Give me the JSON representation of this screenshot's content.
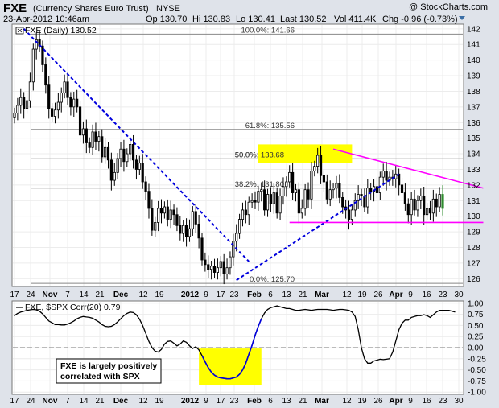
{
  "header": {
    "symbol": "FXE",
    "name": "(Currency Shares Euro Trust)",
    "exchange": "NYSE",
    "datetime": "23-Apr-2012 10:46am",
    "open": "Op 130.70",
    "high": "Hi 130.83",
    "low": "Lo 130.41",
    "last": "Last 130.52",
    "volume": "Vol 411.4K",
    "change": "Chg -0.96 (-0.73%)",
    "change_color": "#cc0000",
    "watermark": "@ StockCharts.com"
  },
  "colors": {
    "trendline": "#0000dd",
    "resistance": "#ff00ff",
    "highlight": "#ffff00",
    "candle_up": "#ffffff",
    "candle_down": "#000000",
    "current_bar": "#2e8b2e"
  },
  "chart_data": [
    {
      "type": "candlestick",
      "legend": "FXE (Daily) 130.52",
      "ylim": [
        125.5,
        142.3
      ],
      "yticks": [
        126,
        127,
        128,
        129,
        130,
        131,
        132,
        133,
        134,
        135,
        136,
        137,
        138,
        139,
        140,
        141,
        142
      ],
      "xlabels": [
        "17",
        "24",
        "Nov",
        "7",
        "14",
        "21",
        "Dec",
        "12",
        "19",
        "2012",
        "9",
        "17",
        "23",
        "Feb",
        "6",
        "13",
        "21",
        "Mar",
        "12",
        "19",
        "26",
        "Apr",
        "9",
        "16",
        "23",
        "30"
      ],
      "xlabels_bold": [
        "Nov",
        "Dec",
        "2012",
        "Feb",
        "Mar",
        "Apr"
      ],
      "fib_levels": [
        {
          "label": "100.0%: 141.66",
          "value": 141.66
        },
        {
          "label": "61.8%: 135.56",
          "value": 135.56
        },
        {
          "label": "50.0%: 133.68",
          "value": 133.68
        },
        {
          "label": "38.2%: 131.80",
          "value": 131.8
        },
        {
          "label": "0.0%: 125.70",
          "value": 125.7
        }
      ],
      "closes": [
        136.6,
        137.1,
        137.6,
        136.9,
        137.4,
        138.6,
        140.7,
        141.3,
        140.9,
        139.7,
        138.4,
        136.9,
        136.4,
        136.8,
        137.3,
        137.9,
        138.6,
        137.6,
        137.0,
        137.5,
        137.0,
        135.2,
        135.6,
        134.7,
        134.4,
        135.4,
        134.8,
        135.1,
        133.8,
        134.4,
        133.6,
        132.3,
        132.8,
        133.7,
        134.3,
        133.5,
        134.0,
        134.6,
        133.6,
        133.0,
        133.4,
        132.2,
        131.6,
        130.5,
        129.1,
        129.6,
        130.5,
        130.2,
        130.6,
        129.8,
        130.4,
        130.1,
        129.4,
        128.9,
        129.4,
        128.7,
        129.2,
        130.3,
        129.5,
        128.6,
        127.2,
        126.9,
        126.6,
        126.8,
        126.4,
        126.7,
        127.1,
        126.3,
        126.7,
        127.4,
        128.4,
        128.9,
        129.8,
        130.4,
        130.1,
        130.9,
        131.0,
        130.9,
        131.6,
        131.7,
        130.4,
        131.4,
        130.8,
        131.5,
        130.2,
        131.3,
        131.9,
        132.2,
        132.8,
        131.5,
        131.7,
        130.2,
        130.5,
        131.7,
        131.1,
        132.9,
        133.2,
        133.9,
        132.6,
        132.2,
        131.1,
        131.7,
        131.8,
        132.1,
        131.2,
        130.6,
        130.4,
        129.8,
        130.4,
        131.0,
        131.4,
        131.3,
        130.6,
        131.8,
        131.6,
        131.9,
        131.5,
        132.5,
        132.9,
        132.3,
        132.5,
        132.4,
        132.7,
        132.0,
        131.5,
        130.8,
        130.1,
        131.1,
        130.4,
        131.0,
        131.3,
        130.1,
        130.5,
        130.2,
        131.1,
        130.6,
        131.4,
        130.5
      ],
      "trendlines": [
        {
          "kind": "dashed-blue",
          "from": [
            3,
            142.0
          ],
          "to": [
            75,
            127.1
          ]
        },
        {
          "kind": "dashed-blue",
          "from": [
            71,
            125.9
          ],
          "to": [
            123,
            132.7
          ]
        },
        {
          "kind": "magenta",
          "from": [
            102,
            134.3
          ],
          "to": [
            150,
            131.8
          ]
        },
        {
          "kind": "magenta",
          "from": [
            88,
            129.6
          ],
          "to": [
            150,
            129.6
          ]
        }
      ],
      "highlight_zone": {
        "from": [
          78,
          133.4
        ],
        "to": [
          108,
          134.6
        ]
      }
    },
    {
      "type": "line",
      "legend": "FXE, $SPX Corr(20) 0.79",
      "ylim": [
        -1.05,
        1.05
      ],
      "yticks": [
        "1.00",
        "0.75",
        "0.50",
        "0.25",
        "0.00",
        "-0.25",
        "-0.50",
        "-0.75",
        "-1.00"
      ],
      "ytick_values": [
        1.0,
        0.75,
        0.5,
        0.25,
        0.0,
        -0.25,
        -0.5,
        -0.75,
        -1.0
      ],
      "zero_line": 0.0,
      "annotation": [
        "FXE is largely positively",
        "correlated with SPX"
      ],
      "highlight_zone": {
        "from": [
          59,
          -0.02
        ],
        "to": [
          79,
          -0.84
        ]
      },
      "series": [
        0.72,
        0.77,
        0.8,
        0.82,
        0.84,
        0.85,
        0.86,
        0.85,
        0.82,
        0.76,
        0.68,
        0.6,
        0.56,
        0.52,
        0.52,
        0.51,
        0.51,
        0.53,
        0.56,
        0.6,
        0.65,
        0.68,
        0.7,
        0.69,
        0.68,
        0.66,
        0.62,
        0.58,
        0.52,
        0.48,
        0.47,
        0.48,
        0.52,
        0.58,
        0.65,
        0.72,
        0.77,
        0.8,
        0.79,
        0.74,
        0.64,
        0.5,
        0.32,
        0.14,
        0.0,
        -0.08,
        -0.1,
        -0.04,
        0.08,
        0.14,
        0.15,
        0.1,
        0.04,
        0.08,
        0.15,
        0.12,
        0.04,
        -0.02,
        0.02,
        -0.05,
        -0.18,
        -0.32,
        -0.45,
        -0.55,
        -0.62,
        -0.66,
        -0.68,
        -0.69,
        -0.7,
        -0.7,
        -0.68,
        -0.66,
        -0.6,
        -0.5,
        -0.35,
        -0.15,
        0.05,
        0.28,
        0.48,
        0.65,
        0.78,
        0.86,
        0.9,
        0.92,
        0.94,
        0.92,
        0.9,
        0.88,
        0.88,
        0.86,
        0.84,
        0.84,
        0.85,
        0.86,
        0.85,
        0.84,
        0.85,
        0.86,
        0.86,
        0.86,
        0.86,
        0.85,
        0.84,
        0.85,
        0.86,
        0.86,
        0.85,
        0.84,
        0.8,
        0.7,
        0.4,
        0.0,
        -0.25,
        -0.35,
        -0.35,
        -0.3,
        -0.28,
        -0.26,
        -0.27,
        -0.26,
        -0.25,
        -0.1,
        0.15,
        0.4,
        0.55,
        0.62,
        0.62,
        0.68,
        0.7,
        0.72,
        0.72,
        0.74,
        0.72,
        0.68,
        0.74,
        0.8,
        0.84,
        0.84,
        0.84,
        0.84,
        0.82,
        0.8
      ]
    }
  ]
}
